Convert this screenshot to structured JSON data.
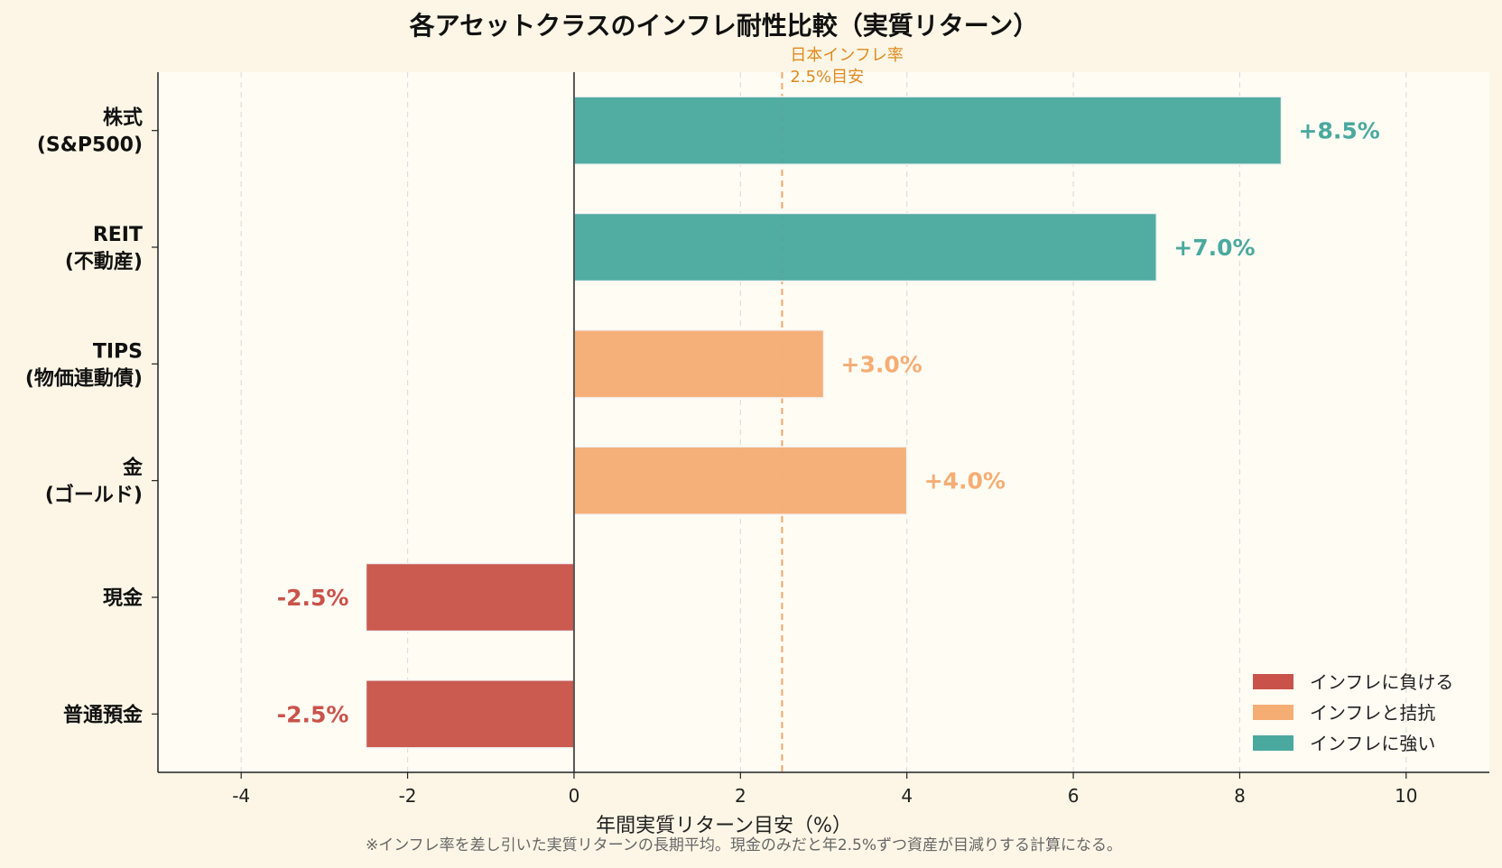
{
  "chart_data": {
    "type": "bar",
    "orientation": "horizontal",
    "title": "各アセットクラスのインフレ耐性比較（実質リターン）",
    "xlabel": "年間実質リターン目安（%）",
    "note": "※インフレ率を差し引いた実質リターンの長期平均。現金のみだと年2.5%ずつ資産が目減りする計算になる。",
    "xlim": [
      -5,
      11
    ],
    "xticks": [
      -4,
      -2,
      0,
      2,
      4,
      6,
      8,
      10
    ],
    "grid": true,
    "reference_line": {
      "value": 2.5,
      "label_lines": [
        "日本インフレ率",
        "2.5%目安"
      ],
      "color": "#f4a66a"
    },
    "categories": [
      {
        "lines": [
          "株式",
          "(S&P500)"
        ],
        "value": 8.5,
        "label": "+8.5%",
        "group": "strong"
      },
      {
        "lines": [
          "REIT",
          "(不動産)"
        ],
        "value": 7.0,
        "label": "+7.0%",
        "group": "strong"
      },
      {
        "lines": [
          "TIPS",
          "(物価連動債)"
        ],
        "value": 3.0,
        "label": "+3.0%",
        "group": "match"
      },
      {
        "lines": [
          "金",
          "(ゴールド)"
        ],
        "value": 4.0,
        "label": "+4.0%",
        "group": "match"
      },
      {
        "lines": [
          "現金"
        ],
        "value": -2.5,
        "label": "-2.5%",
        "group": "lose"
      },
      {
        "lines": [
          "普通預金"
        ],
        "value": -2.5,
        "label": "-2.5%",
        "group": "lose"
      }
    ],
    "groups": {
      "lose": {
        "name": "インフレに負ける",
        "color": "#c9534a"
      },
      "match": {
        "name": "インフレと拮抗",
        "color": "#f5ad74"
      },
      "strong": {
        "name": "インフレに強い",
        "color": "#4aa99e"
      }
    },
    "legend": {
      "position": "bottom-right",
      "order": [
        "lose",
        "match",
        "strong"
      ]
    }
  }
}
